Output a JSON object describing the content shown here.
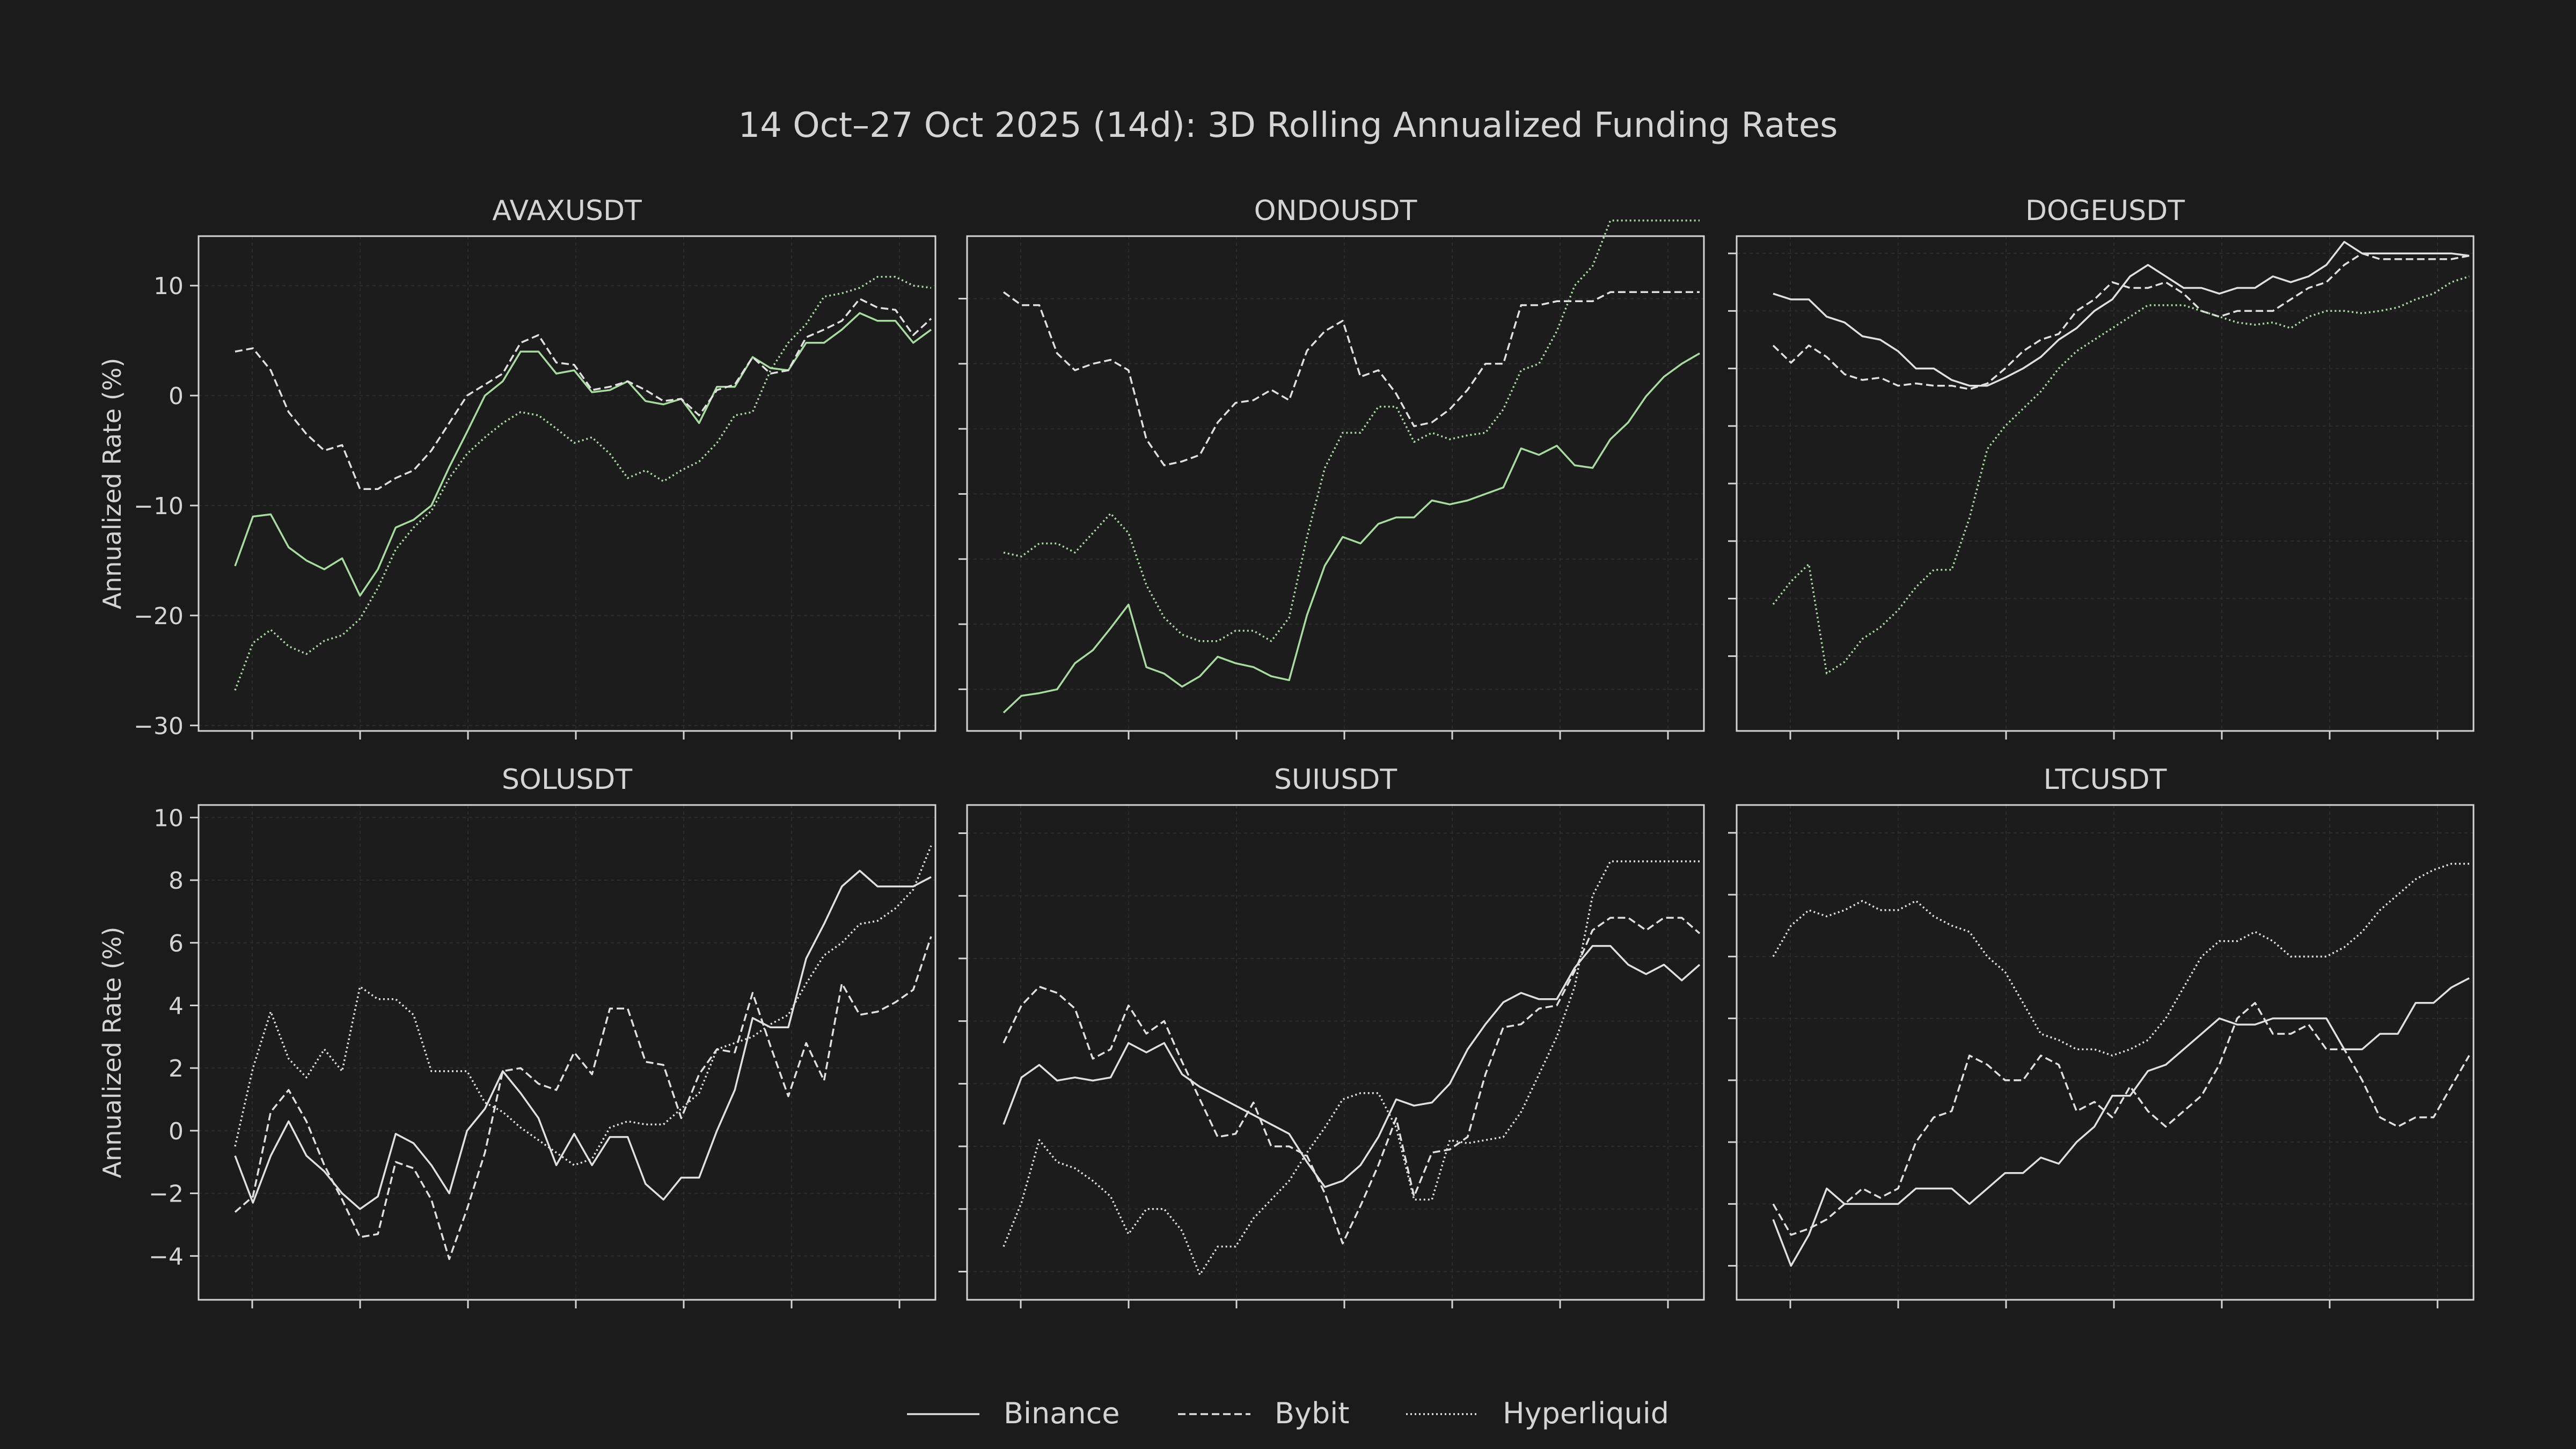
{
  "title": "14 Oct–27 Oct 2025 (14d): 3D Rolling Annualized Funding Rates",
  "ylabel": "Annualized Rate (%)",
  "legend": {
    "placement": "bottom-center",
    "entries": [
      {
        "name": "Binance",
        "style": "solid"
      },
      {
        "name": "Bybit",
        "style": "dashed"
      },
      {
        "name": "Hyperliquid",
        "style": "dotted"
      }
    ]
  },
  "colors": {
    "background": "#1b1b1b",
    "axes_background": "#1c1c1c",
    "text": "#d4d4d4",
    "line_default": "#e0e0e0",
    "line_highlight": "#a8dba0",
    "grid": "#2a2a2a"
  },
  "chart_data": [
    {
      "type": "line",
      "title": "AVAXUSDT",
      "ylim": [
        -30.5,
        14.5
      ],
      "yticks": [
        -30,
        -20,
        -10,
        0,
        10
      ],
      "ytick_labels": [
        "−30",
        "−20",
        "−10",
        "0",
        "10"
      ],
      "grid": true,
      "series": [
        {
          "name": "Binance",
          "values": [
            -15.5,
            -11,
            -10.8,
            -13.8,
            -15,
            -15.8,
            -14.8,
            -18.2,
            -15.8,
            -12,
            -11.3,
            -10,
            -6.5,
            -3.3,
            0,
            1.3,
            4,
            4,
            2,
            2.3,
            0.3,
            0.5,
            1.3,
            -0.5,
            -0.8,
            -0.3,
            -2.5,
            0.8,
            0.8,
            3.5,
            2.5,
            2.3,
            4.8,
            4.8,
            6,
            7.5,
            6.8,
            6.8,
            4.8,
            6
          ]
        },
        {
          "name": "Bybit",
          "values": [
            4,
            4.3,
            2.3,
            -1.5,
            -3.5,
            -5,
            -4.5,
            -8.5,
            -8.5,
            -7.5,
            -6.8,
            -5,
            -2.5,
            0,
            1,
            2,
            4.8,
            5.5,
            3,
            2.8,
            0.5,
            0.8,
            1.3,
            0.5,
            -0.5,
            -0.3,
            -1.8,
            0.5,
            1,
            3.5,
            2,
            2.3,
            5.3,
            6,
            6.8,
            8.8,
            8,
            7.8,
            5.5,
            7
          ]
        },
        {
          "name": "Hyperliquid",
          "values": [
            -26.8,
            -22.5,
            -21.3,
            -22.8,
            -23.5,
            -22.3,
            -21.8,
            -20.3,
            -17.5,
            -14,
            -12,
            -10.5,
            -7.5,
            -5.3,
            -3.8,
            -2.5,
            -1.5,
            -1.8,
            -3,
            -4.3,
            -3.8,
            -5.3,
            -7.5,
            -6.8,
            -7.8,
            -6.8,
            -6,
            -4.3,
            -1.8,
            -1.5,
            2.3,
            4.8,
            6.5,
            9,
            9.3,
            9.8,
            10.8,
            10.8,
            10,
            9.8
          ]
        }
      ],
      "highlight_series": "Binance,Hyperliquid"
    },
    {
      "type": "line",
      "title": "ONDOUSDT",
      "ylim": [
        -28.2,
        9.8
      ],
      "yticks": [
        -25,
        -20,
        -15,
        -10,
        -5,
        0,
        5
      ],
      "ytick_labels": [],
      "grid": true,
      "series": [
        {
          "name": "Binance",
          "values": [
            -26.8,
            -25.5,
            -25.3,
            -25,
            -23,
            -22,
            -20.3,
            -18.5,
            -23.3,
            -23.8,
            -24.8,
            -24,
            -22.5,
            -23,
            -23.3,
            -24,
            -24.3,
            -19.3,
            -15.5,
            -13.3,
            -13.8,
            -12.3,
            -11.8,
            -11.8,
            -10.5,
            -10.8,
            -10.5,
            -10,
            -9.5,
            -6.5,
            -7,
            -6.3,
            -7.8,
            -8,
            -5.8,
            -4.5,
            -2.5,
            -1,
            0,
            0.8
          ]
        },
        {
          "name": "Bybit",
          "values": [
            5.5,
            4.5,
            4.5,
            0.8,
            -0.5,
            0,
            0.3,
            -0.5,
            -5.8,
            -7.8,
            -7.5,
            -7,
            -4.5,
            -3,
            -2.8,
            -2,
            -2.8,
            1,
            2.5,
            3.3,
            -1,
            -0.5,
            -2.3,
            -4.8,
            -4.5,
            -3.5,
            -2,
            0,
            0,
            4.5,
            4.5,
            4.8,
            4.8,
            4.8,
            5.5,
            5.5,
            5.5,
            5.5,
            5.5,
            5.5
          ]
        },
        {
          "name": "Hyperliquid",
          "values": [
            -14.5,
            -14.8,
            -13.8,
            -13.8,
            -14.5,
            -13,
            -11.5,
            -13,
            -17,
            -19.5,
            -20.8,
            -21.3,
            -21.3,
            -20.5,
            -20.5,
            -21.3,
            -19.5,
            -13.3,
            -8,
            -5.3,
            -5.3,
            -3.3,
            -3.3,
            -6,
            -5.3,
            -5.8,
            -5.5,
            -5.3,
            -3.5,
            -0.5,
            0,
            2.5,
            6,
            7.5,
            11,
            11,
            11,
            11,
            11,
            11
          ]
        }
      ],
      "highlight_series": "Binance,Hyperliquid"
    },
    {
      "type": "line",
      "title": "DOGEUSDT",
      "ylim": [
        -31.5,
        11.5
      ],
      "yticks": [
        -25,
        -20,
        -15,
        -10,
        -5,
        0,
        5,
        10
      ],
      "ytick_labels": [],
      "grid": true,
      "series": [
        {
          "name": "Binance",
          "values": [
            6.5,
            6,
            6,
            4.5,
            4,
            2.8,
            2.5,
            1.5,
            0,
            0,
            -1,
            -1.5,
            -1.5,
            -0.8,
            0,
            1,
            2.5,
            3.5,
            5,
            6,
            8,
            9,
            8,
            7,
            7,
            6.5,
            7,
            7,
            8,
            7.5,
            8,
            9,
            11,
            10,
            10,
            10,
            10,
            10,
            10,
            9.8
          ]
        },
        {
          "name": "Bybit",
          "values": [
            2,
            0.5,
            2,
            1,
            -0.5,
            -1,
            -0.8,
            -1.5,
            -1.3,
            -1.5,
            -1.5,
            -1.8,
            -1.3,
            0,
            1.5,
            2.5,
            3,
            5,
            6,
            7.5,
            7,
            7,
            7.5,
            6.5,
            5,
            4.5,
            5,
            5,
            5,
            6,
            7,
            7.5,
            9,
            10,
            9.5,
            9.5,
            9.5,
            9.5,
            9.5,
            9.8
          ]
        },
        {
          "name": "Hyperliquid",
          "values": [
            -20.5,
            -18.5,
            -17,
            -26.5,
            -25.5,
            -23.5,
            -22.5,
            -21,
            -19,
            -17.5,
            -17.5,
            -13,
            -7,
            -5,
            -3.5,
            -2,
            0,
            1.5,
            2.5,
            3.5,
            4.5,
            5.5,
            5.5,
            5.5,
            5,
            4.5,
            4,
            3.8,
            4,
            3.5,
            4.5,
            5,
            5,
            4.8,
            5,
            5.3,
            6,
            6.5,
            7.5,
            8
          ]
        }
      ],
      "highlight_series": "Hyperliquid"
    },
    {
      "type": "line",
      "title": "SOLUSDT",
      "ylim": [
        -5.4,
        10.4
      ],
      "yticks": [
        -4,
        -2,
        0,
        2,
        4,
        6,
        8,
        10
      ],
      "ytick_labels": [
        "−4",
        "−2",
        "0",
        "2",
        "4",
        "6",
        "8",
        "10"
      ],
      "grid": true,
      "series": [
        {
          "name": "Binance",
          "values": [
            -0.8,
            -2.3,
            -0.8,
            0.3,
            -0.8,
            -1.3,
            -2,
            -2.5,
            -2.1,
            -0.1,
            -0.4,
            -1.1,
            -2,
            0,
            0.7,
            1.9,
            1.2,
            0.4,
            -1.1,
            -0.1,
            -1.1,
            -0.2,
            -0.2,
            -1.7,
            -2.2,
            -1.5,
            -1.5,
            0,
            1.3,
            3.6,
            3.3,
            3.3,
            5.5,
            6.6,
            7.8,
            8.3,
            7.8,
            7.8,
            7.8,
            8.1
          ]
        },
        {
          "name": "Bybit",
          "values": [
            -2.6,
            -2.1,
            0.6,
            1.3,
            0.3,
            -1.1,
            -2.2,
            -3.4,
            -3.3,
            -1,
            -1.2,
            -2.2,
            -4.1,
            -2.5,
            -0.7,
            1.9,
            2,
            1.5,
            1.3,
            2.5,
            1.8,
            3.9,
            3.9,
            2.2,
            2.1,
            0.4,
            1.8,
            2.6,
            2.5,
            4.4,
            2.7,
            1.1,
            2.8,
            1.6,
            4.7,
            3.7,
            3.8,
            4.1,
            4.5,
            6.2
          ]
        },
        {
          "name": "Hyperliquid",
          "values": [
            -0.5,
            2,
            3.8,
            2.3,
            1.7,
            2.6,
            1.9,
            4.6,
            4.2,
            4.2,
            3.7,
            1.9,
            1.9,
            1.9,
            0.9,
            0.6,
            0.1,
            -0.3,
            -0.7,
            -1.1,
            -0.9,
            0.1,
            0.3,
            0.2,
            0.2,
            0.7,
            1.2,
            2.6,
            2.8,
            3,
            3.4,
            3.7,
            4.7,
            5.6,
            6,
            6.6,
            6.7,
            7.1,
            7.7,
            9.1
          ]
        }
      ]
    },
    {
      "type": "line",
      "title": "SUIUSDT",
      "ylim": [
        -4.9,
        10.9
      ],
      "yticks": [
        -4,
        -2,
        0,
        2,
        4,
        6,
        8,
        10
      ],
      "ytick_labels": [],
      "grid": true,
      "series": [
        {
          "name": "Binance",
          "values": [
            0.7,
            2.2,
            2.6,
            2.1,
            2.2,
            2.1,
            2.2,
            3.3,
            3,
            3.3,
            2.3,
            1.9,
            1.6,
            1.3,
            1,
            0.7,
            0.4,
            -0.5,
            -1.3,
            -1.1,
            -0.6,
            0.3,
            1.5,
            1.3,
            1.4,
            2,
            3.1,
            3.9,
            4.6,
            4.9,
            4.7,
            4.7,
            5.7,
            6.4,
            6.4,
            5.8,
            5.5,
            5.8,
            5.3,
            5.8
          ]
        },
        {
          "name": "Bybit",
          "values": [
            3.3,
            4.5,
            5.1,
            4.9,
            4.4,
            2.8,
            3.1,
            4.5,
            3.6,
            4,
            2.7,
            1.5,
            0.3,
            0.4,
            1.4,
            0,
            0,
            -0.3,
            -1.5,
            -3.1,
            -1.9,
            -0.6,
            0.9,
            -1.6,
            -0.2,
            -0.1,
            0.3,
            2.3,
            3.8,
            3.9,
            4.4,
            4.5,
            5.6,
            6.9,
            7.3,
            7.3,
            6.9,
            7.3,
            7.3,
            6.8
          ]
        },
        {
          "name": "Hyperliquid",
          "values": [
            -3.2,
            -1.8,
            0.2,
            -0.5,
            -0.7,
            -1.1,
            -1.6,
            -2.8,
            -2,
            -2,
            -2.7,
            -4.1,
            -3.2,
            -3.2,
            -2.3,
            -1.7,
            -1.1,
            -0.2,
            0.6,
            1.5,
            1.7,
            1.7,
            0.6,
            -1.7,
            -1.7,
            0.2,
            0.1,
            0.2,
            0.3,
            1.1,
            2.3,
            3.5,
            5.1,
            8,
            9.1,
            9.1,
            9.1,
            9.1,
            9.1,
            9.1
          ]
        }
      ]
    },
    {
      "type": "line",
      "title": "LTCUSDT",
      "ylim": [
        -5.1,
        10.9
      ],
      "yticks": [
        -4,
        -2,
        0,
        2,
        4,
        6,
        8,
        10
      ],
      "ytick_labels": [],
      "grid": true,
      "series": [
        {
          "name": "Binance",
          "values": [
            -2.5,
            -4,
            -3,
            -1.5,
            -2,
            -2,
            -2,
            -2,
            -1.5,
            -1.5,
            -1.5,
            -2,
            -1.5,
            -1,
            -1,
            -0.5,
            -0.7,
            0,
            0.5,
            1.5,
            1.5,
            2.3,
            2.5,
            3,
            3.5,
            4,
            3.8,
            3.8,
            4,
            4,
            4,
            4,
            3,
            3,
            3.5,
            3.5,
            4.5,
            4.5,
            5,
            5.3
          ]
        },
        {
          "name": "Bybit",
          "values": [
            -2,
            -3,
            -2.8,
            -2.5,
            -2,
            -1.5,
            -1.8,
            -1.5,
            0,
            0.8,
            1,
            2.8,
            2.5,
            2,
            2,
            2.8,
            2.5,
            1,
            1.3,
            0.8,
            1.8,
            1,
            0.5,
            1,
            1.5,
            2.5,
            4,
            4.5,
            3.5,
            3.5,
            3.8,
            3,
            3,
            2,
            0.8,
            0.5,
            0.8,
            0.8,
            1.8,
            2.8
          ]
        },
        {
          "name": "Hyperliquid",
          "values": [
            6,
            7,
            7.5,
            7.3,
            7.5,
            7.8,
            7.5,
            7.5,
            7.8,
            7.3,
            7,
            6.8,
            6,
            5.5,
            4.5,
            3.5,
            3.3,
            3,
            3,
            2.8,
            3,
            3.3,
            4,
            5,
            6,
            6.5,
            6.5,
            6.8,
            6.5,
            6,
            6,
            6,
            6.3,
            6.8,
            7.5,
            8,
            8.5,
            8.8,
            9,
            9
          ]
        }
      ]
    }
  ]
}
